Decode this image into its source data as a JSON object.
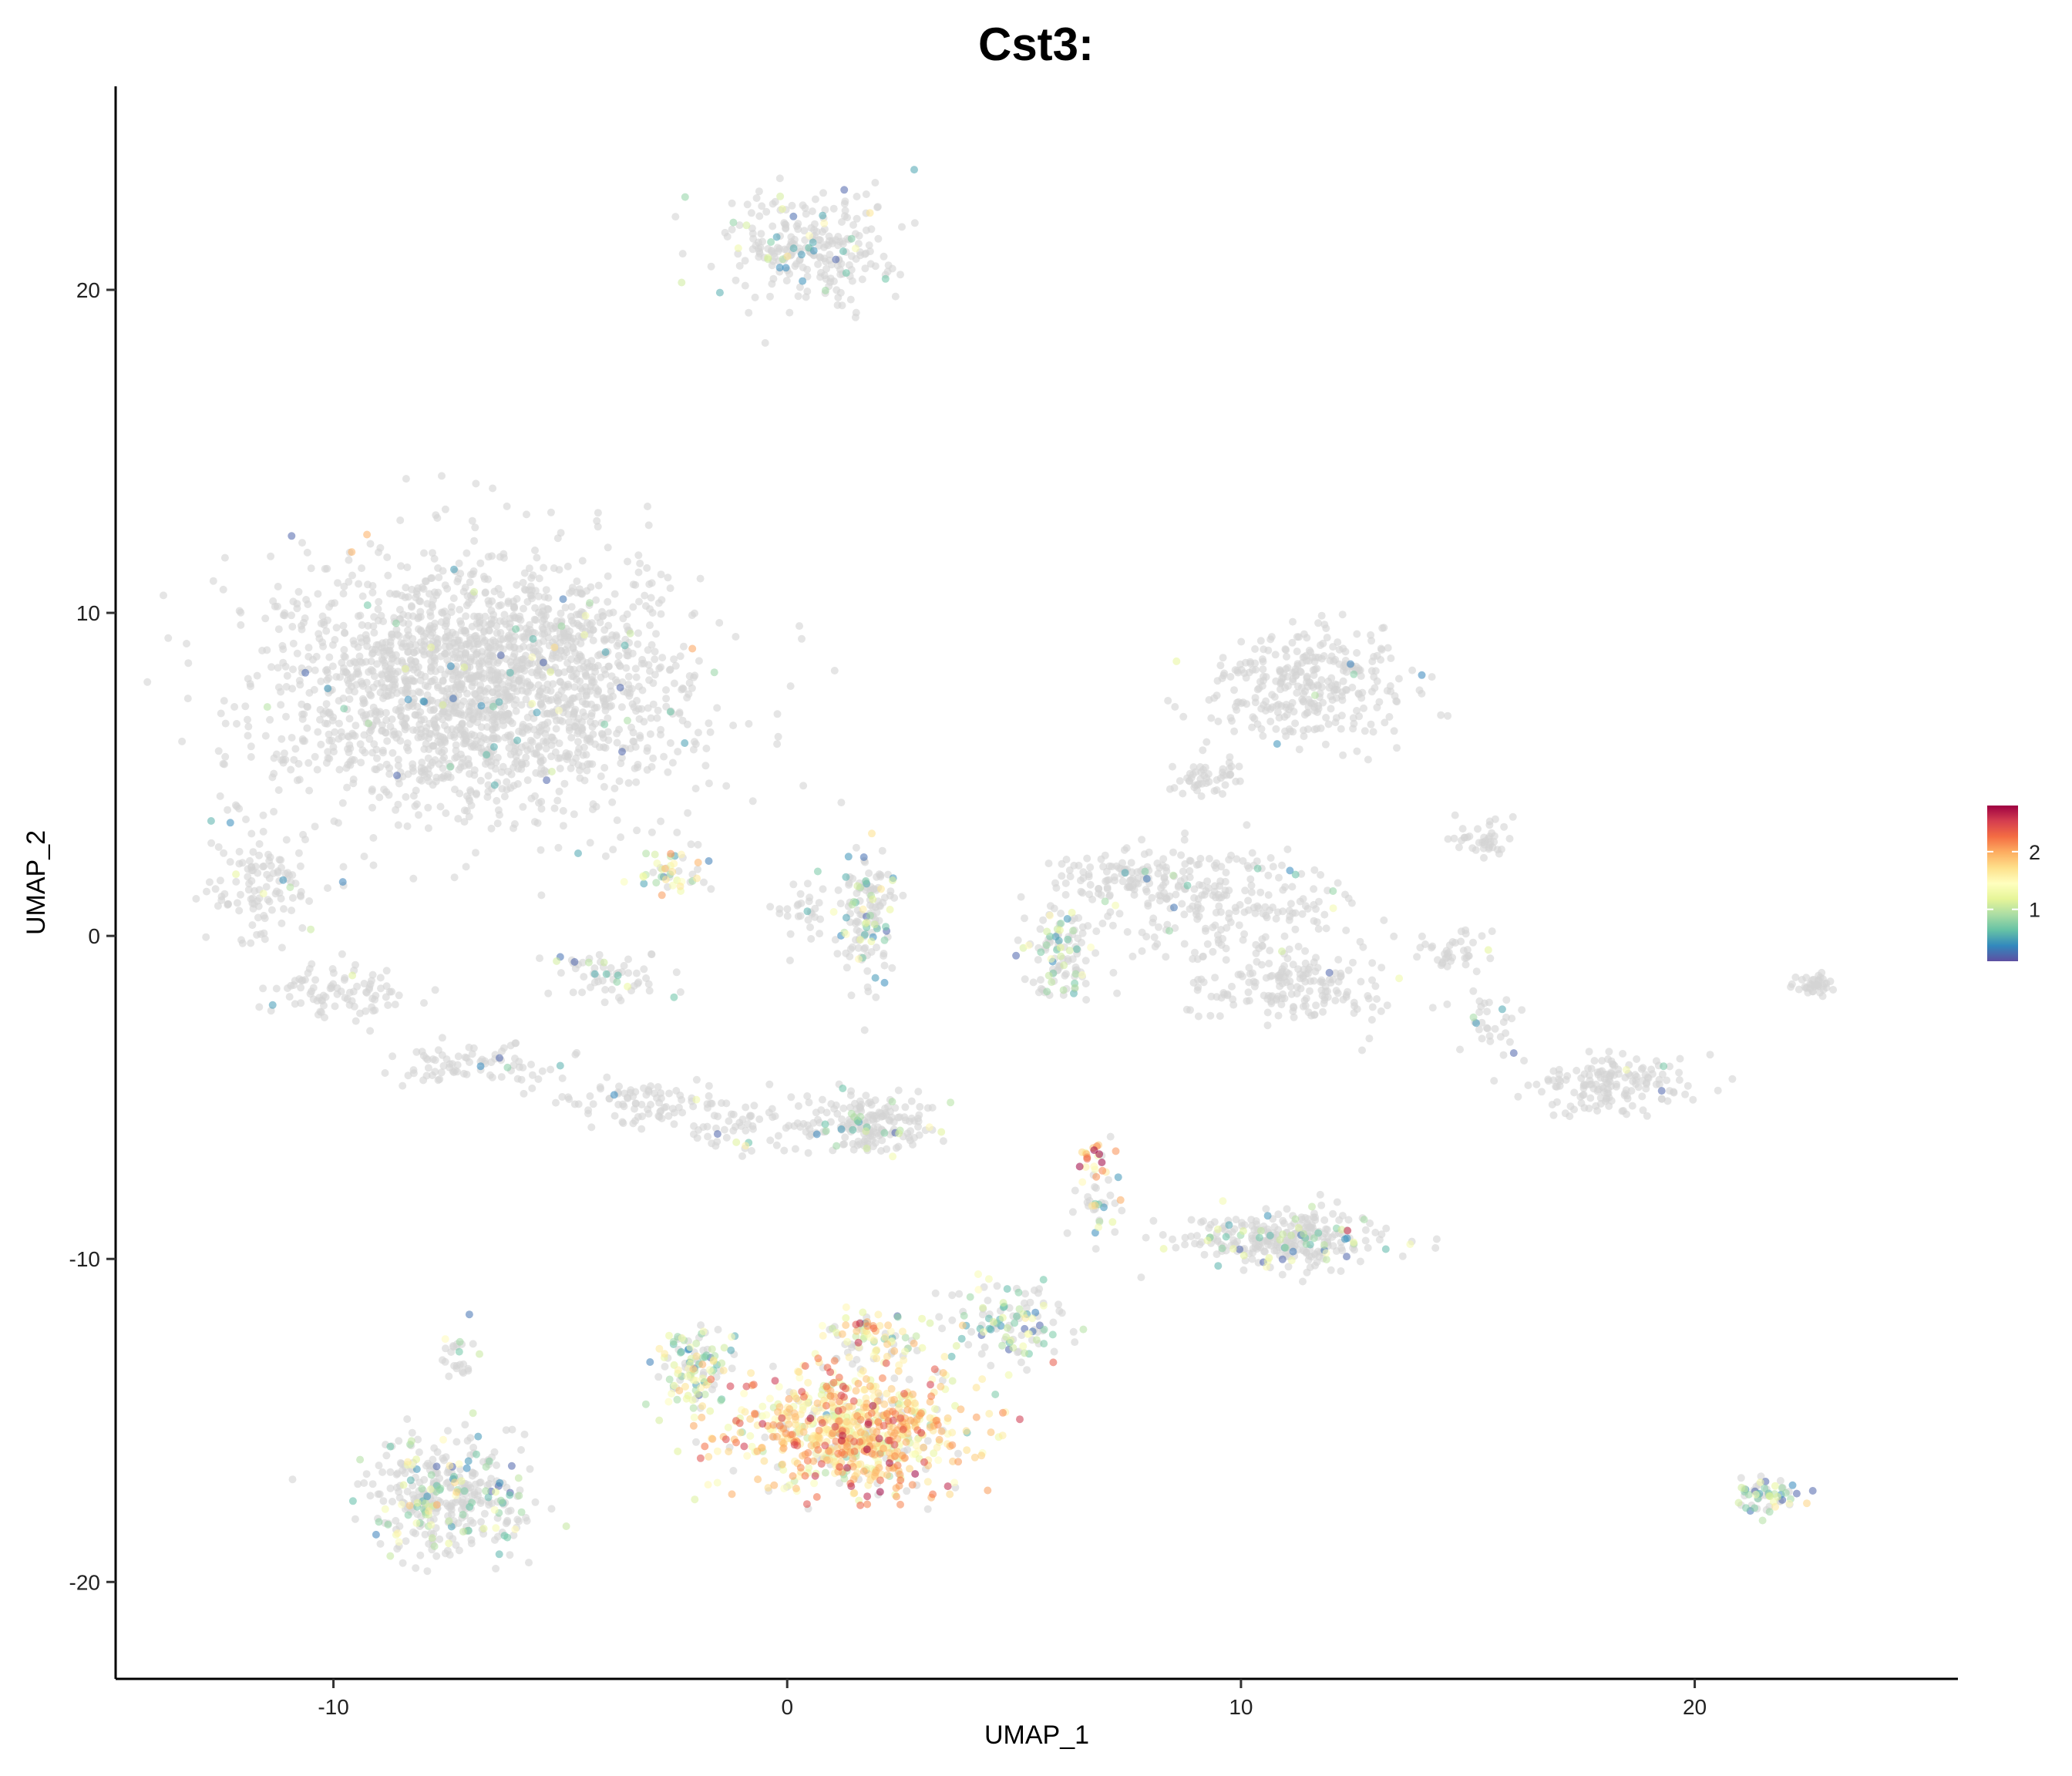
{
  "chart_data": {
    "type": "scatter",
    "title": "Cst3:",
    "xlabel": "UMAP_1",
    "ylabel": "UMAP_2",
    "xlim": [
      -14.8,
      25.8
    ],
    "ylim": [
      -23.0,
      26.3
    ],
    "x_ticks": [
      -10,
      0,
      10,
      20
    ],
    "y_ticks": [
      -20,
      -10,
      0,
      10,
      20
    ],
    "x_tick_labels": [
      "-10",
      "0",
      "10",
      "20"
    ],
    "y_tick_labels": [
      "-20",
      "-10",
      "0",
      "10",
      "20"
    ],
    "grid": false,
    "legend": {
      "placement": "right",
      "type": "colorbar",
      "min": 0.1,
      "max": 2.8,
      "ticks": [
        1,
        2
      ],
      "tick_labels": [
        "1",
        "2"
      ],
      "palette": [
        "#5e4fa2",
        "#3288bd",
        "#66c2a5",
        "#abdda4",
        "#e6f598",
        "#ffffbf",
        "#fee08b",
        "#fdae61",
        "#f46d43",
        "#d53e4f",
        "#9e0142"
      ]
    },
    "zero_color": "#d3d3d3",
    "clusters": [
      {
        "label": "top island",
        "cx": 0.4,
        "cy": 21.3,
        "sx": 1.2,
        "sy": 1.1,
        "n": 260,
        "expr_frac": 0.12,
        "expr_mean": 0.9
      },
      {
        "label": "large upper-left cloud",
        "cx": -6.8,
        "cy": 7.8,
        "sx": 3.0,
        "sy": 2.6,
        "n": 2100,
        "expr_frac": 0.03,
        "expr_mean": 0.7
      },
      {
        "label": "arc 1",
        "cx": -11.5,
        "cy": 1.5,
        "sx": 0.9,
        "sy": 1.2,
        "n": 120,
        "expr_frac": 0.04,
        "expr_mean": 0.7
      },
      {
        "label": "arc 2",
        "cx": -10.0,
        "cy": -1.8,
        "sx": 1.0,
        "sy": 0.7,
        "n": 90,
        "expr_frac": 0.05,
        "expr_mean": 0.7
      },
      {
        "label": "arc 3",
        "cx": -6.8,
        "cy": -4.0,
        "sx": 1.3,
        "sy": 0.5,
        "n": 80,
        "expr_frac": 0.05,
        "expr_mean": 0.7
      },
      {
        "label": "arc 4",
        "cx": -3.0,
        "cy": -5.2,
        "sx": 1.5,
        "sy": 0.5,
        "n": 90,
        "expr_frac": 0.05,
        "expr_mean": 0.7
      },
      {
        "label": "arc 5",
        "cx": -1.0,
        "cy": -5.9,
        "sx": 1.2,
        "sy": 0.5,
        "n": 60,
        "expr_frac": 0.05,
        "expr_mean": 0.7
      },
      {
        "label": "mid-lower patch",
        "cx": 1.8,
        "cy": -5.8,
        "sx": 0.9,
        "sy": 0.7,
        "n": 180,
        "expr_frac": 0.12,
        "expr_mean": 0.8
      },
      {
        "label": "small orange patch",
        "cx": -2.6,
        "cy": 2.0,
        "sx": 0.6,
        "sy": 0.5,
        "n": 45,
        "expr_frac": 0.75,
        "expr_mean": 1.3
      },
      {
        "label": "small gray patch",
        "cx": -4.0,
        "cy": -1.2,
        "sx": 0.9,
        "sy": 0.5,
        "n": 60,
        "expr_frac": 0.18,
        "expr_mean": 0.8
      },
      {
        "label": "vertical strip",
        "cx": 1.8,
        "cy": 0.6,
        "sx": 0.4,
        "sy": 1.5,
        "n": 140,
        "expr_frac": 0.22,
        "expr_mean": 0.8
      },
      {
        "label": "strip left bit",
        "cx": 0.5,
        "cy": 0.8,
        "sx": 0.5,
        "sy": 0.7,
        "n": 30,
        "expr_frac": 0.1,
        "expr_mean": 0.8
      },
      {
        "label": "upper-right group A",
        "cx": 11.5,
        "cy": 7.8,
        "sx": 1.5,
        "sy": 1.2,
        "n": 320,
        "expr_frac": 0.02,
        "expr_mean": 0.7
      },
      {
        "label": "upper-right group B",
        "cx": 9.2,
        "cy": 4.8,
        "sx": 0.5,
        "sy": 0.4,
        "n": 50,
        "expr_frac": 0.0,
        "expr_mean": 0.7
      },
      {
        "label": "central band",
        "cx": 9.5,
        "cy": 1.0,
        "sx": 2.0,
        "sy": 1.2,
        "n": 260,
        "expr_frac": 0.04,
        "expr_mean": 0.7
      },
      {
        "label": "central band lower",
        "cx": 11.2,
        "cy": -1.6,
        "sx": 1.4,
        "sy": 0.7,
        "n": 170,
        "expr_frac": 0.02,
        "expr_mean": 0.7
      },
      {
        "label": "left of band",
        "cx": 6.0,
        "cy": -0.6,
        "sx": 0.6,
        "sy": 1.1,
        "n": 110,
        "expr_frac": 0.35,
        "expr_mean": 0.8
      },
      {
        "label": "band upper-left",
        "cx": 7.2,
        "cy": 1.8,
        "sx": 1.0,
        "sy": 0.5,
        "n": 70,
        "expr_frac": 0.05,
        "expr_mean": 0.7
      },
      {
        "label": "right small 1",
        "cx": 15.3,
        "cy": 3.0,
        "sx": 0.5,
        "sy": 0.4,
        "n": 40,
        "expr_frac": 0.0,
        "expr_mean": 0.7
      },
      {
        "label": "right small 2",
        "cx": 14.7,
        "cy": -0.5,
        "sx": 0.5,
        "sy": 0.5,
        "n": 40,
        "expr_frac": 0.05,
        "expr_mean": 0.7
      },
      {
        "label": "right cluster",
        "cx": 18.2,
        "cy": -4.6,
        "sx": 1.3,
        "sy": 0.6,
        "n": 160,
        "expr_frac": 0.04,
        "expr_mean": 0.8
      },
      {
        "label": "right edge bit",
        "cx": 15.6,
        "cy": -2.6,
        "sx": 0.5,
        "sy": 0.7,
        "n": 30,
        "expr_frac": 0.08,
        "expr_mean": 0.8
      },
      {
        "label": "far right blob",
        "cx": 22.6,
        "cy": -1.5,
        "sx": 0.35,
        "sy": 0.25,
        "n": 40,
        "expr_frac": 0.0,
        "expr_mean": 0.7
      },
      {
        "label": "lower-right elongated",
        "cx": 10.8,
        "cy": -9.4,
        "sx": 1.5,
        "sy": 0.6,
        "n": 300,
        "expr_frac": 0.18,
        "expr_mean": 0.8
      },
      {
        "label": "lower hot cluster",
        "cx": 1.4,
        "cy": -15.3,
        "sx": 1.6,
        "sy": 1.2,
        "n": 800,
        "expr_frac": 0.9,
        "expr_mean": 1.7
      },
      {
        "label": "hot cluster top",
        "cx": 1.8,
        "cy": -12.5,
        "sx": 0.7,
        "sy": 0.6,
        "n": 90,
        "expr_frac": 0.6,
        "expr_mean": 1.4
      },
      {
        "label": "lower-left of hot",
        "cx": -2.0,
        "cy": -13.4,
        "sx": 0.6,
        "sy": 0.8,
        "n": 120,
        "expr_frac": 0.7,
        "expr_mean": 1.1
      },
      {
        "label": "connector",
        "cx": 4.8,
        "cy": -12.0,
        "sx": 0.9,
        "sy": 0.9,
        "n": 120,
        "expr_frac": 0.45,
        "expr_mean": 1.0
      },
      {
        "label": "stalk up to orange",
        "cx": 6.8,
        "cy": -8.2,
        "sx": 0.4,
        "sy": 1.0,
        "n": 40,
        "expr_frac": 0.5,
        "expr_mean": 1.2
      },
      {
        "label": "orange stalk top",
        "cx": 6.8,
        "cy": -6.8,
        "sx": 0.3,
        "sy": 0.3,
        "n": 15,
        "expr_frac": 1.0,
        "expr_mean": 2.0
      },
      {
        "label": "lower-left cluster",
        "cx": -7.5,
        "cy": -17.4,
        "sx": 1.2,
        "sy": 1.2,
        "n": 380,
        "expr_frac": 0.3,
        "expr_mean": 0.9
      },
      {
        "label": "lower-left top",
        "cx": -7.2,
        "cy": -13.0,
        "sx": 0.3,
        "sy": 0.5,
        "n": 25,
        "expr_frac": 0.2,
        "expr_mean": 0.8
      },
      {
        "label": "bottom-right blob",
        "cx": 21.7,
        "cy": -17.4,
        "sx": 0.5,
        "sy": 0.35,
        "n": 60,
        "expr_frac": 0.5,
        "expr_mean": 0.9
      }
    ]
  }
}
